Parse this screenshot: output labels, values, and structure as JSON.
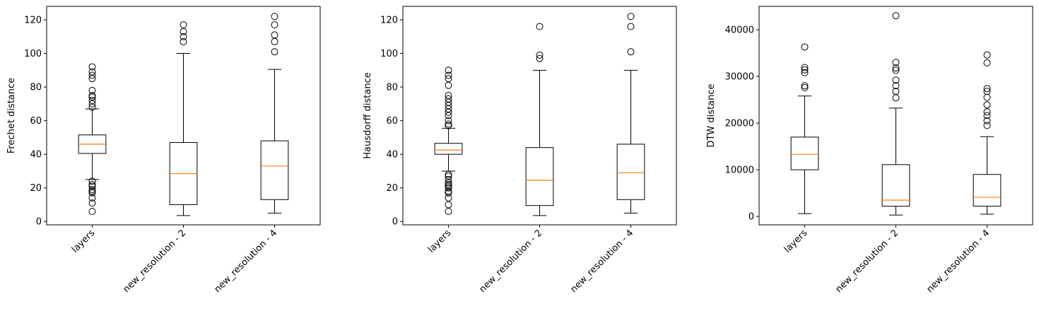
{
  "colors": {
    "box": "#000000",
    "median": "#ff7f0e",
    "background": "#ffffff"
  },
  "chart_data": [
    {
      "type": "box",
      "title": "",
      "xlabel": "",
      "ylabel": "Frechet distance",
      "categories": [
        "layers",
        "new_resolution - 2",
        "new_resolution - 4"
      ],
      "yticks": [
        0,
        20,
        40,
        60,
        80,
        100,
        120
      ],
      "ylim": [
        -2,
        128
      ],
      "xtick_rotation_deg": 45,
      "boxes": [
        {
          "category": "layers",
          "whisker_low": 25,
          "q1": 40.5,
          "median": 46,
          "q3": 51.5,
          "whisker_high": 67,
          "outliers": [
            68,
            70,
            72,
            74,
            75,
            78,
            85,
            87,
            89,
            92,
            24,
            22,
            21,
            19,
            18,
            17,
            14,
            11,
            6
          ]
        },
        {
          "category": "new_resolution - 2",
          "whisker_low": 3.5,
          "q1": 10,
          "median": 28.5,
          "q3": 47,
          "whisker_high": 100,
          "outliers": [
            107,
            110,
            113,
            117
          ]
        },
        {
          "category": "new_resolution - 4",
          "whisker_low": 5,
          "q1": 13,
          "median": 33,
          "q3": 48,
          "whisker_high": 90.5,
          "outliers": [
            101,
            107,
            111,
            117,
            122
          ]
        }
      ]
    },
    {
      "type": "box",
      "title": "",
      "xlabel": "",
      "ylabel": "Hausdorff distance",
      "categories": [
        "layers",
        "new_resolution - 2",
        "new_resolution - 4"
      ],
      "yticks": [
        0,
        20,
        40,
        60,
        80,
        100,
        120
      ],
      "ylim": [
        -2,
        128
      ],
      "xtick_rotation_deg": 45,
      "boxes": [
        {
          "category": "layers",
          "whisker_low": 30,
          "q1": 40,
          "median": 42.5,
          "q3": 46.5,
          "whisker_high": 55.5,
          "outliers": [
            57,
            58,
            60,
            63,
            65,
            67,
            69,
            71,
            73,
            75,
            81,
            85,
            87,
            90,
            28,
            27,
            25,
            23,
            22,
            21,
            20,
            18,
            17,
            14,
            10,
            6
          ]
        },
        {
          "category": "new_resolution - 2",
          "whisker_low": 3.5,
          "q1": 9.5,
          "median": 24.5,
          "q3": 44,
          "whisker_high": 90,
          "outliers": [
            97,
            99,
            116
          ]
        },
        {
          "category": "new_resolution - 4",
          "whisker_low": 5,
          "q1": 13,
          "median": 29,
          "q3": 46,
          "whisker_high": 90,
          "outliers": [
            101,
            116,
            122
          ]
        }
      ]
    },
    {
      "type": "box",
      "title": "",
      "xlabel": "",
      "ylabel": "DTW distance",
      "categories": [
        "layers",
        "new_resolution - 2",
        "new_resolution - 4"
      ],
      "yticks": [
        0,
        10000,
        20000,
        30000,
        40000
      ],
      "ylim": [
        -1800,
        45000
      ],
      "xtick_rotation_deg": 45,
      "boxes": [
        {
          "category": "layers",
          "whisker_low": 600,
          "q1": 10000,
          "median": 13300,
          "q3": 17000,
          "whisker_high": 25800,
          "outliers": [
            27600,
            28000,
            30800,
            31400,
            31900,
            36300
          ]
        },
        {
          "category": "new_resolution - 2",
          "whisker_low": 300,
          "q1": 2200,
          "median": 3500,
          "q3": 11100,
          "whisker_high": 23200,
          "outliers": [
            25400,
            26800,
            28000,
            29200,
            31300,
            31800,
            33000,
            43000
          ]
        },
        {
          "category": "new_resolution - 4",
          "whisker_low": 500,
          "q1": 2200,
          "median": 4100,
          "q3": 9000,
          "whisker_high": 17100,
          "outliers": [
            19500,
            20500,
            21600,
            22400,
            23900,
            25500,
            26800,
            27400,
            32900,
            34600
          ]
        }
      ]
    }
  ]
}
